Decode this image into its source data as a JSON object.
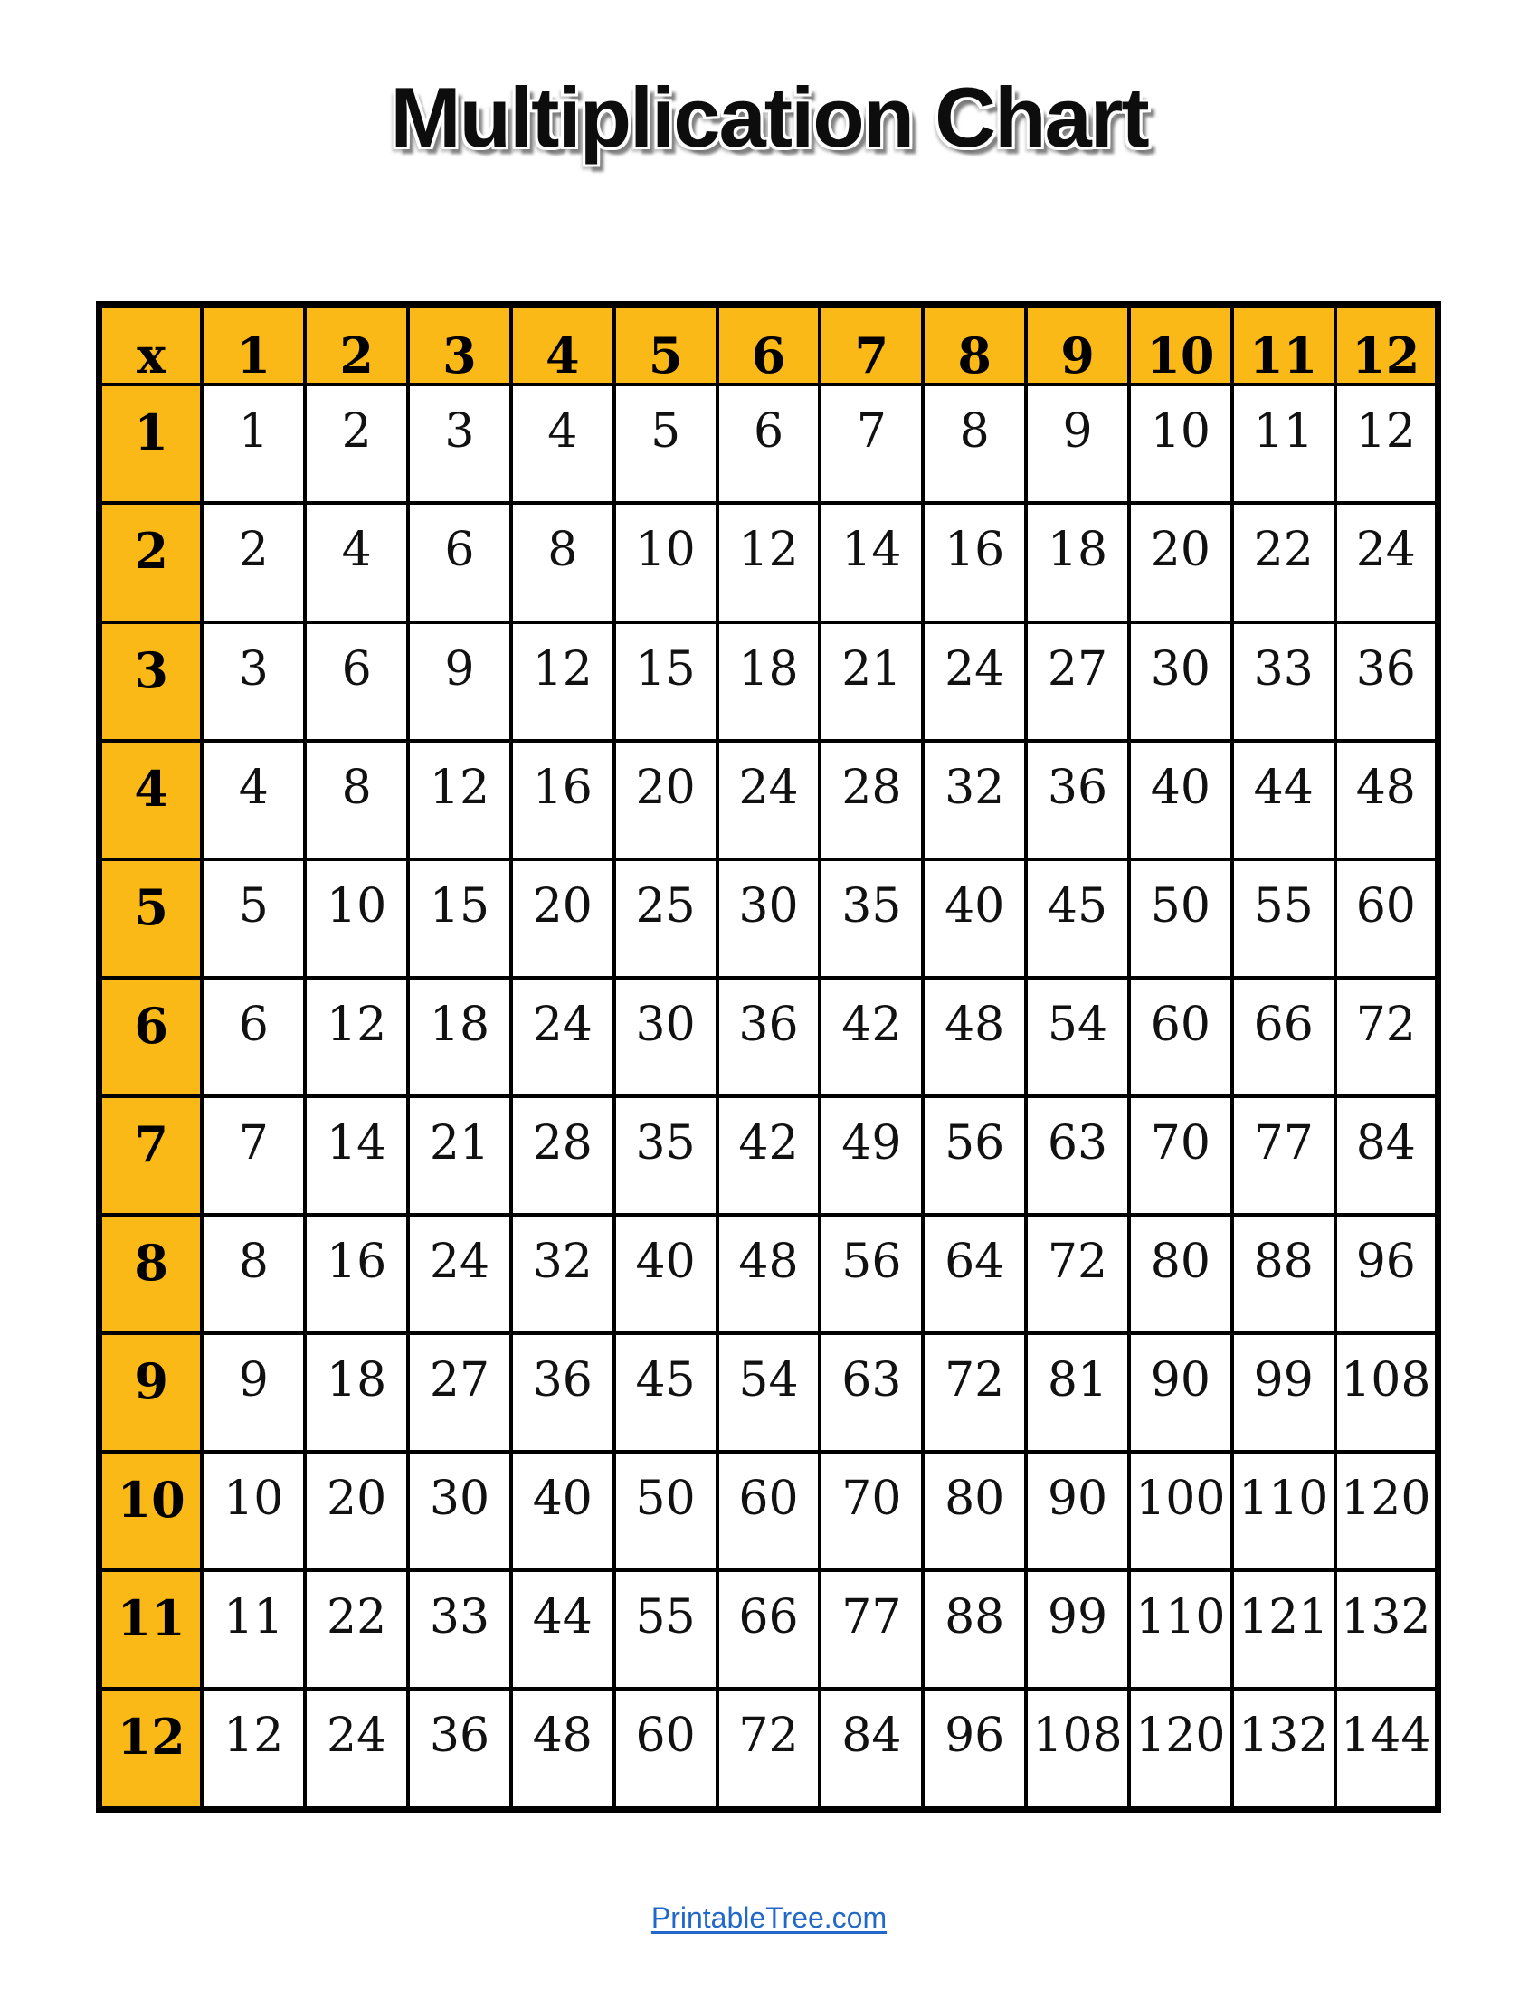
{
  "page": {
    "title": "Multiplication Chart",
    "footer": {
      "link_text": "PrintableTree.com"
    }
  },
  "colors": {
    "header_bg": "#FBB917",
    "grid_border": "#000000",
    "link_blue": "#2268C8",
    "title_color": "#0d0d0d"
  },
  "chart_data": {
    "type": "table",
    "title": "Multiplication Chart",
    "corner_label": "x",
    "column_headers": [
      "1",
      "2",
      "3",
      "4",
      "5",
      "6",
      "7",
      "8",
      "9",
      "10",
      "11",
      "12"
    ],
    "row_headers": [
      "1",
      "2",
      "3",
      "4",
      "5",
      "6",
      "7",
      "8",
      "9",
      "10",
      "11",
      "12"
    ],
    "rows": [
      [
        1,
        2,
        3,
        4,
        5,
        6,
        7,
        8,
        9,
        10,
        11,
        12
      ],
      [
        2,
        4,
        6,
        8,
        10,
        12,
        14,
        16,
        18,
        20,
        22,
        24
      ],
      [
        3,
        6,
        9,
        12,
        15,
        18,
        21,
        24,
        27,
        30,
        33,
        36
      ],
      [
        4,
        8,
        12,
        16,
        20,
        24,
        28,
        32,
        36,
        40,
        44,
        48
      ],
      [
        5,
        10,
        15,
        20,
        25,
        30,
        35,
        40,
        45,
        50,
        55,
        60
      ],
      [
        6,
        12,
        18,
        24,
        30,
        36,
        42,
        48,
        54,
        60,
        66,
        72
      ],
      [
        7,
        14,
        21,
        28,
        35,
        42,
        49,
        56,
        63,
        70,
        77,
        84
      ],
      [
        8,
        16,
        24,
        32,
        40,
        48,
        56,
        64,
        72,
        80,
        88,
        96
      ],
      [
        9,
        18,
        27,
        36,
        45,
        54,
        63,
        72,
        81,
        90,
        99,
        108
      ],
      [
        10,
        20,
        30,
        40,
        50,
        60,
        70,
        80,
        90,
        100,
        110,
        120
      ],
      [
        11,
        22,
        33,
        44,
        55,
        66,
        77,
        88,
        99,
        110,
        121,
        132
      ],
      [
        12,
        24,
        36,
        48,
        60,
        72,
        84,
        96,
        108,
        120,
        132,
        144
      ]
    ]
  }
}
